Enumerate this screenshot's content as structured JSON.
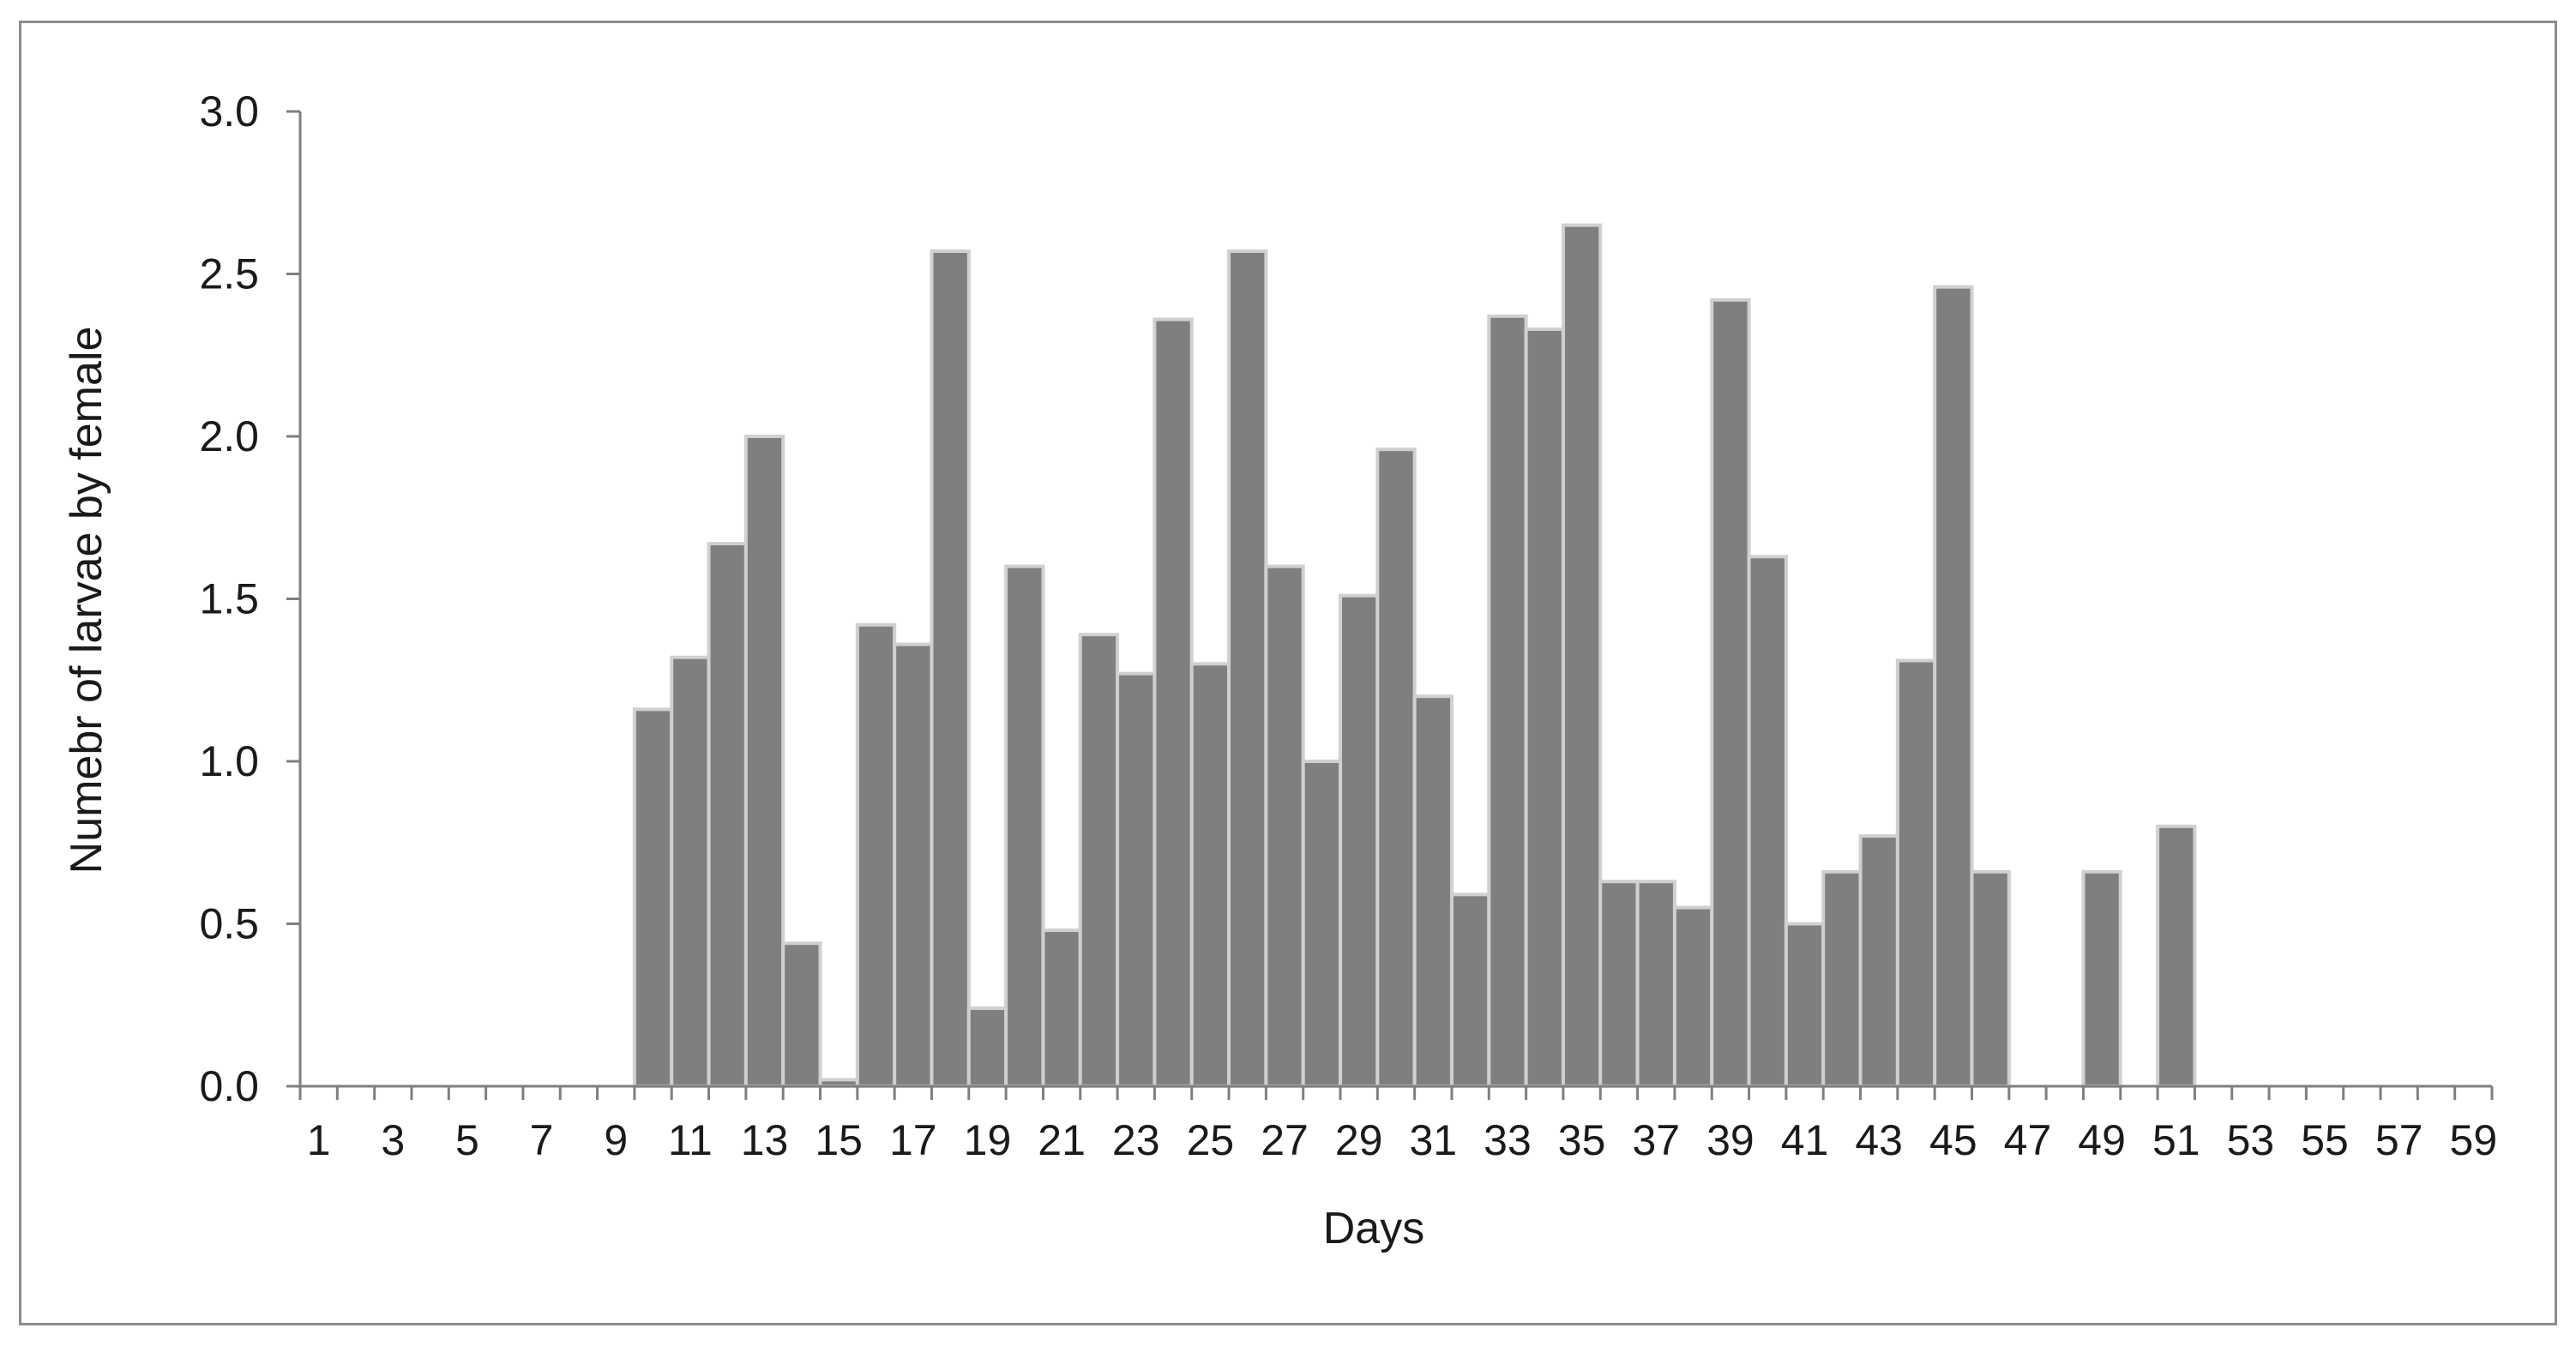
{
  "chart_data": {
    "type": "bar",
    "xlabel": "Days",
    "ylabel": "Numebr of larvae by female",
    "ylim": [
      0,
      3.0
    ],
    "yticks": [
      "0.0",
      "0.5",
      "1.0",
      "1.5",
      "2.0",
      "2.5",
      "3.0"
    ],
    "xtick_labels": [
      "1",
      "3",
      "5",
      "7",
      "9",
      "11",
      "13",
      "15",
      "17",
      "19",
      "21",
      "23",
      "25",
      "27",
      "29",
      "31",
      "33",
      "35",
      "37",
      "39",
      "41",
      "43",
      "45",
      "47",
      "49",
      "51",
      "53",
      "55",
      "57",
      "59"
    ],
    "categories": [
      1,
      2,
      3,
      4,
      5,
      6,
      7,
      8,
      9,
      10,
      11,
      12,
      13,
      14,
      15,
      16,
      17,
      18,
      19,
      20,
      21,
      22,
      23,
      24,
      25,
      26,
      27,
      28,
      29,
      30,
      31,
      32,
      33,
      34,
      35,
      36,
      37,
      38,
      39,
      40,
      41,
      42,
      43,
      44,
      45,
      46,
      47,
      48,
      49,
      50,
      51,
      52,
      53,
      54,
      55,
      56,
      57,
      58,
      59
    ],
    "values": [
      0,
      0,
      0,
      0,
      0,
      0,
      0,
      0,
      0,
      1.16,
      1.32,
      1.67,
      2.0,
      0.44,
      0.02,
      1.42,
      1.36,
      2.57,
      0.24,
      1.6,
      0.48,
      1.39,
      1.27,
      2.36,
      1.3,
      2.57,
      1.6,
      1.0,
      1.51,
      1.96,
      1.2,
      0.59,
      2.37,
      2.33,
      2.65,
      0.63,
      0.63,
      0.55,
      2.42,
      1.63,
      0.5,
      0.66,
      0.77,
      1.31,
      2.46,
      0.66,
      0,
      0,
      0.66,
      0,
      0.8,
      0,
      0,
      0,
      0,
      0,
      0,
      0,
      0
    ],
    "grid": false,
    "legend": "none",
    "colors": {
      "bar_fill": "#7f7f7f",
      "bar_edge": "#d0d0d0",
      "axis": "#7f7f7f",
      "frame": "#8c8c8c"
    }
  }
}
